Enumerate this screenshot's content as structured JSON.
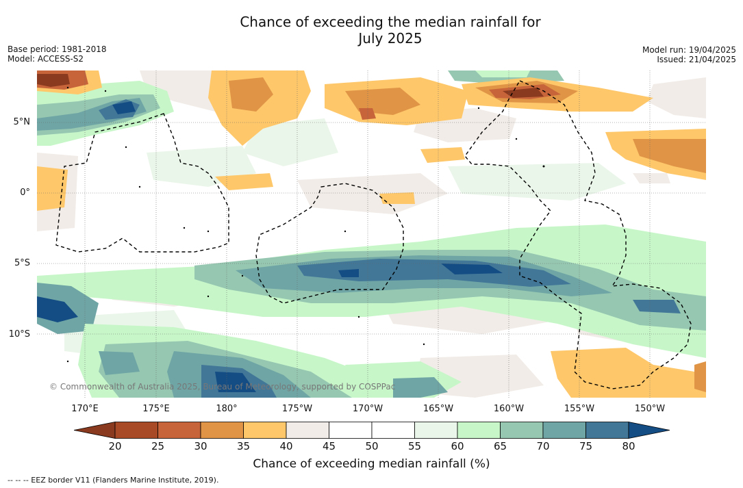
{
  "title_line1": "Chance of exceeding the median rainfall for",
  "title_line2": "July 2025",
  "meta_left": {
    "base_period": "Base period: 1981-2018",
    "model": "Model: ACCESS-S2"
  },
  "meta_right": {
    "model_run": "Model run: 19/04/2025",
    "issued": "Issued: 21/04/2025"
  },
  "map": {
    "lat_labels": [
      "5°N",
      "0°",
      "5°S",
      "10°S"
    ],
    "lon_labels": [
      "170°E",
      "175°E",
      "180°",
      "175°W",
      "170°W",
      "165°W",
      "160°W",
      "155°W",
      "150°W"
    ],
    "copyright": "© Commonwealth of Australia 2025, Bureau of Meteorology, supported by COSPPac",
    "eez_color": "#000000"
  },
  "colorbar": {
    "ticks": [
      "20",
      "25",
      "30",
      "35",
      "40",
      "45",
      "50",
      "55",
      "60",
      "65",
      "70",
      "75",
      "80"
    ],
    "colors": [
      "#8a3a1e",
      "#a94a27",
      "#c8643a",
      "#e09446",
      "#fdc76a",
      "#f1ece7",
      "#ffffff",
      "#ffffff",
      "#ebf6ea",
      "#c7f7c9",
      "#96c7b1",
      "#6fa6a5",
      "#427798",
      "#144d84"
    ],
    "title": "Chance of exceeding median rainfall (%)"
  },
  "footnote": "--  --  -- EEZ border V11 (Flanders Marine Institute, 2019)."
}
